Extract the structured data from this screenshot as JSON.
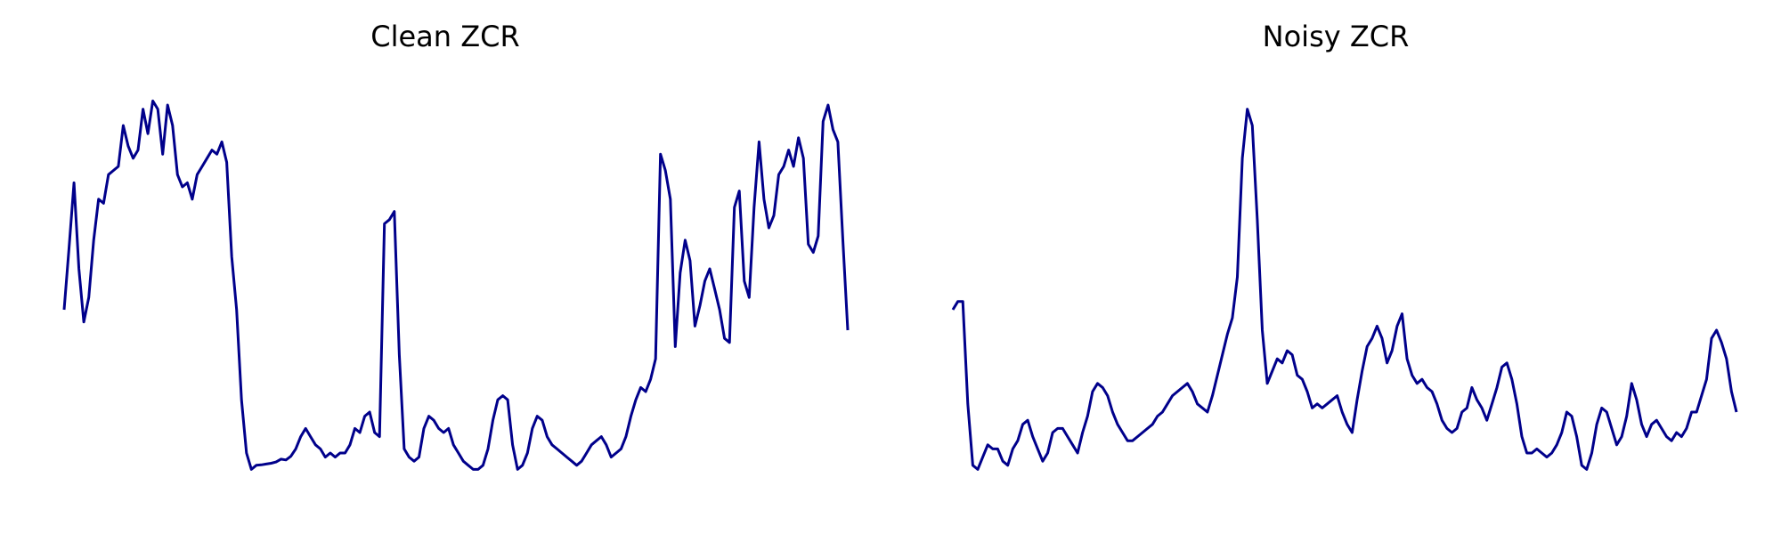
{
  "chart_data": [
    {
      "type": "line",
      "title": "Clean ZCR",
      "xlabel": "",
      "ylabel": "",
      "axes_visible": false,
      "grid": false,
      "color": "#00008B",
      "series": [
        {
          "values": [
            0.45,
            0.6,
            0.76,
            0.55,
            0.42,
            0.48,
            0.62,
            0.72,
            0.71,
            0.78,
            0.79,
            0.8,
            0.9,
            0.85,
            0.82,
            0.84,
            0.94,
            0.88,
            0.96,
            0.94,
            0.83,
            0.95,
            0.9,
            0.78,
            0.75,
            0.76,
            0.72,
            0.78,
            0.8,
            0.82,
            0.84,
            0.83,
            0.86,
            0.81,
            0.58,
            0.45,
            0.23,
            0.1,
            0.06,
            0.07,
            0.071,
            0.073,
            0.075,
            0.078,
            0.085,
            0.083,
            0.092,
            0.11,
            0.14,
            0.16,
            0.14,
            0.12,
            0.11,
            0.09,
            0.1,
            0.09,
            0.1,
            0.1,
            0.12,
            0.16,
            0.15,
            0.19,
            0.2,
            0.15,
            0.14,
            0.66,
            0.67,
            0.69,
            0.34,
            0.11,
            0.09,
            0.08,
            0.09,
            0.16,
            0.19,
            0.18,
            0.16,
            0.15,
            0.16,
            0.12,
            0.1,
            0.08,
            0.07,
            0.06,
            0.06,
            0.07,
            0.11,
            0.18,
            0.23,
            0.24,
            0.23,
            0.12,
            0.06,
            0.07,
            0.1,
            0.16,
            0.19,
            0.18,
            0.14,
            0.12,
            0.11,
            0.1,
            0.09,
            0.08,
            0.07,
            0.08,
            0.1,
            0.12,
            0.13,
            0.14,
            0.12,
            0.09,
            0.1,
            0.11,
            0.14,
            0.19,
            0.23,
            0.26,
            0.25,
            0.28,
            0.33,
            0.83,
            0.79,
            0.72,
            0.36,
            0.54,
            0.62,
            0.57,
            0.41,
            0.46,
            0.52,
            0.55,
            0.5,
            0.45,
            0.38,
            0.37,
            0.7,
            0.74,
            0.52,
            0.48,
            0.7,
            0.86,
            0.72,
            0.65,
            0.68,
            0.78,
            0.8,
            0.84,
            0.8,
            0.87,
            0.82,
            0.61,
            0.59,
            0.63,
            0.91,
            0.95,
            0.89,
            0.86,
            0.62,
            0.4
          ]
        }
      ]
    },
    {
      "type": "line",
      "title": "Noisy ZCR",
      "xlabel": "",
      "ylabel": "",
      "axes_visible": false,
      "grid": false,
      "color": "#00008B",
      "series": [
        {
          "values": [
            0.45,
            0.47,
            0.47,
            0.22,
            0.07,
            0.06,
            0.09,
            0.12,
            0.11,
            0.11,
            0.08,
            0.07,
            0.11,
            0.13,
            0.17,
            0.18,
            0.14,
            0.11,
            0.08,
            0.1,
            0.15,
            0.16,
            0.16,
            0.14,
            0.12,
            0.1,
            0.15,
            0.19,
            0.25,
            0.27,
            0.26,
            0.24,
            0.2,
            0.17,
            0.15,
            0.13,
            0.13,
            0.14,
            0.15,
            0.16,
            0.17,
            0.19,
            0.2,
            0.22,
            0.24,
            0.25,
            0.26,
            0.27,
            0.25,
            0.22,
            0.21,
            0.2,
            0.24,
            0.29,
            0.34,
            0.39,
            0.43,
            0.53,
            0.82,
            0.94,
            0.9,
            0.67,
            0.4,
            0.27,
            0.3,
            0.33,
            0.32,
            0.35,
            0.34,
            0.29,
            0.28,
            0.25,
            0.21,
            0.22,
            0.21,
            0.22,
            0.23,
            0.24,
            0.2,
            0.17,
            0.15,
            0.23,
            0.3,
            0.36,
            0.38,
            0.41,
            0.38,
            0.32,
            0.35,
            0.41,
            0.44,
            0.33,
            0.29,
            0.27,
            0.28,
            0.26,
            0.25,
            0.22,
            0.18,
            0.16,
            0.15,
            0.16,
            0.2,
            0.21,
            0.26,
            0.23,
            0.21,
            0.18,
            0.22,
            0.26,
            0.31,
            0.32,
            0.28,
            0.22,
            0.14,
            0.1,
            0.1,
            0.11,
            0.1,
            0.09,
            0.1,
            0.12,
            0.15,
            0.2,
            0.19,
            0.14,
            0.07,
            0.06,
            0.1,
            0.17,
            0.21,
            0.2,
            0.16,
            0.12,
            0.14,
            0.19,
            0.27,
            0.23,
            0.17,
            0.14,
            0.17,
            0.18,
            0.16,
            0.14,
            0.13,
            0.15,
            0.14,
            0.16,
            0.2,
            0.2,
            0.24,
            0.28,
            0.38,
            0.4,
            0.37,
            0.33,
            0.25,
            0.2
          ]
        }
      ]
    }
  ]
}
